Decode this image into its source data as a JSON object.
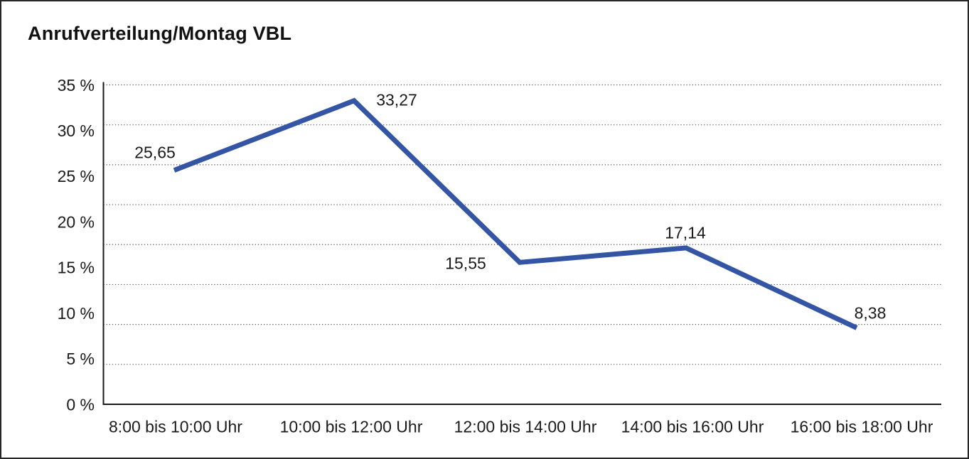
{
  "chart_data": {
    "type": "line",
    "title": "Anrufverteilung/Montag VBL",
    "categories": [
      "8:00 bis 10:00 Uhr",
      "10:00 bis 12:00 Uhr",
      "12:00 bis 14:00 Uhr",
      "14:00 bis 16:00 Uhr",
      "16:00 bis 18:00 Uhr"
    ],
    "values": [
      25.65,
      33.27,
      15.55,
      17.14,
      8.38
    ],
    "point_labels": [
      "25,65",
      "33,27",
      "15,55",
      "17,14",
      "8,38"
    ],
    "y_tick_labels": [
      "35 %",
      "30 %",
      "25 %",
      "20 %",
      "15 %",
      "10 %",
      "5 %",
      "0 %"
    ],
    "xlabel": "",
    "ylabel": "",
    "ylim": [
      0,
      35
    ],
    "y_unit": "%",
    "grid": "horizontal-dotted",
    "legend_position": "none",
    "colors": {
      "series_line": "#3454a4",
      "axis": "#1a1a1a",
      "gridline": "#5a5a5a",
      "text": "#1a1a1a",
      "background": "#ffffff",
      "frame_border": "#262626"
    }
  }
}
